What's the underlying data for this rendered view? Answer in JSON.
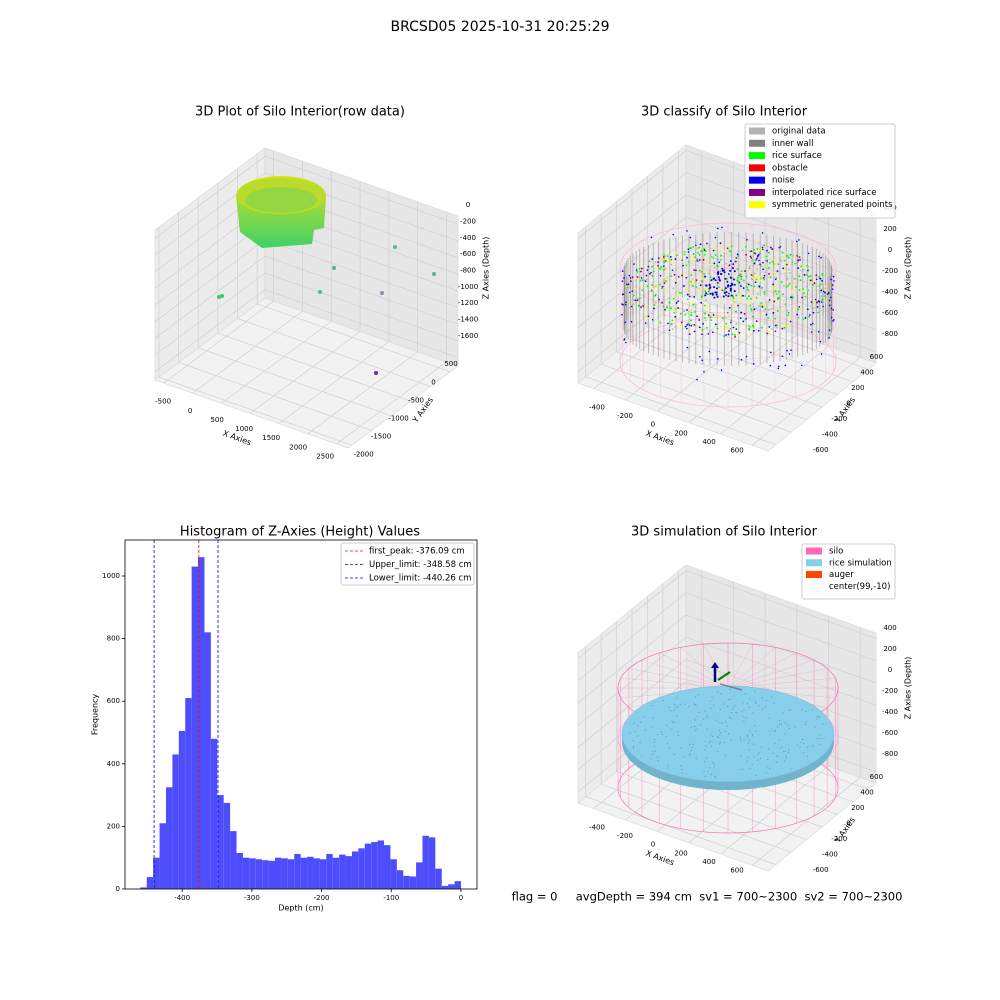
{
  "title": "BRCSD05 2025-10-31 20:25:29",
  "footer": "flag = 0     avgDepth = 394 cm  sv1 = 700~2300  sv2 = 700~2300",
  "chart_data": [
    {
      "type": "scatter3d",
      "title": "3D Plot of Silo Interior(row data)",
      "xlabel": "X Axies",
      "ylabel": "Y Axies",
      "zlabel": "Z Axies (Depth)",
      "xlim": [
        -650,
        2700
      ],
      "xticks": [
        -500,
        0,
        500,
        1000,
        1500,
        2000,
        2500
      ],
      "ylim": [
        -2100,
        700
      ],
      "yticks": [
        -2000,
        -1500,
        -1000,
        -500,
        0,
        500
      ],
      "zlim": [
        -1700,
        100
      ],
      "zticks": [
        -1600,
        -1400,
        -1200,
        -1000,
        -800,
        -600,
        -400,
        -200,
        0
      ]
    },
    {
      "type": "scatter3d",
      "title": "3D classify of Silo Interior",
      "xlabel": "X Axies",
      "ylabel": "Y Axies",
      "zlabel": "Z Axies (Depth)",
      "xlim": [
        -500,
        700
      ],
      "xticks": [
        -400,
        -200,
        0,
        200,
        400,
        600
      ],
      "ylim": [
        -700,
        700
      ],
      "yticks": [
        -600,
        -400,
        -200,
        0,
        200,
        400,
        600
      ],
      "zlim": [
        -900,
        450
      ],
      "zticks": [
        -800,
        -600,
        -400,
        -200,
        0,
        200,
        400
      ],
      "legend": "upper right",
      "series": [
        {
          "name": "original data",
          "color": "#b3b3b3"
        },
        {
          "name": "inner wall",
          "color": "#808080"
        },
        {
          "name": "rice surface",
          "color": "#00ff00"
        },
        {
          "name": "obstacle",
          "color": "#ff0000"
        },
        {
          "name": "noise",
          "color": "#0000ee"
        },
        {
          "name": "interpolated rice surface",
          "color": "#800080"
        },
        {
          "name": "symmetric generated points",
          "color": "#ffff00"
        }
      ]
    },
    {
      "type": "histogram",
      "title": "Histogram of Z-Axies (Height) Values",
      "xlabel": "Depth (cm)",
      "ylabel": "Frequency",
      "color": "#4d4dfb",
      "bins": [
        -460,
        -450.8,
        -441.6,
        -432.4,
        -423.2,
        -414,
        -404.8,
        -395.6,
        -386.4,
        -377.2,
        -368,
        -358.8,
        -349.6,
        -340.4,
        -331.2,
        -322,
        -312.8,
        -303.6,
        -294.4,
        -285.2,
        -276,
        -266.8,
        -257.6,
        -248.4,
        -239.2,
        -230,
        -220.8,
        -211.6,
        -202.4,
        -193.2,
        -184,
        -174.8,
        -165.6,
        -156.4,
        -147.2,
        -138,
        -128.8,
        -119.6,
        -110.4,
        -101.2,
        -92,
        -82.8,
        -73.6,
        -64.4,
        -55.2,
        -46,
        -36.8,
        -27.6,
        -18.4,
        -9.2,
        0
      ],
      "values": [
        5,
        38,
        100,
        210,
        325,
        430,
        505,
        610,
        1030,
        1060,
        820,
        480,
        300,
        275,
        185,
        115,
        100,
        98,
        95,
        92,
        90,
        100,
        98,
        95,
        112,
        100,
        103,
        98,
        95,
        112,
        100,
        110,
        105,
        120,
        130,
        145,
        150,
        155,
        140,
        95,
        60,
        42,
        40,
        85,
        170,
        165,
        65,
        10,
        15,
        25
      ],
      "xlim": [
        -482,
        23
      ],
      "xticks": [
        -400,
        -300,
        -200,
        -100,
        0
      ],
      "ylim": [
        0,
        1115
      ],
      "yticks": [
        0,
        200,
        400,
        600,
        800,
        1000
      ],
      "legend": "upper right",
      "lines": [
        {
          "name": "first_peak: -376.09 cm",
          "value": -376.09,
          "color": "#ff0000"
        },
        {
          "name": "Upper_limit: -348.58 cm",
          "value": -348.58,
          "color": "#0000ff"
        },
        {
          "name": "Lower_limit: -440.26 cm",
          "value": -440.26,
          "color": "#0000ff"
        }
      ]
    },
    {
      "type": "surface3d",
      "title": "3D simulation of Silo Interior",
      "xlabel": "X Axies",
      "ylabel": "Y Axies",
      "zlabel": "Z Axies (Depth)",
      "xlim": [
        -500,
        700
      ],
      "xticks": [
        -400,
        -200,
        0,
        200,
        400,
        600
      ],
      "ylim": [
        -700,
        700
      ],
      "yticks": [
        -600,
        -400,
        -200,
        0,
        200,
        400,
        600
      ],
      "zlim": [
        -900,
        450
      ],
      "zticks": [
        -800,
        -600,
        -400,
        -200,
        0,
        200,
        400
      ],
      "legend": "upper right",
      "series": [
        {
          "name": "silo",
          "color": "#ff69b4"
        },
        {
          "name": "rice simulation",
          "color": "#87ceeb"
        },
        {
          "name": "auger",
          "color": "#ff4500"
        },
        {
          "name": "center(99,-10)",
          "color": "#ffffff"
        }
      ]
    }
  ]
}
